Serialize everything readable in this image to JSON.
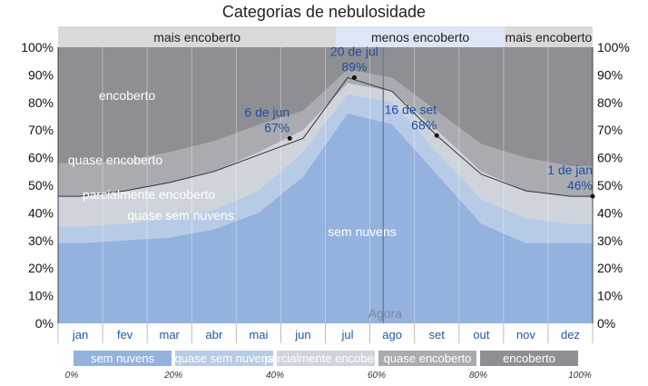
{
  "title": "Categorias de nebulosidade",
  "chart_data": {
    "type": "area",
    "x": [
      "jan",
      "fev",
      "mar",
      "abr",
      "mai",
      "jun",
      "jul",
      "ago",
      "set",
      "out",
      "nov",
      "dez"
    ],
    "ylim": [
      0,
      100
    ],
    "y_left_ticks": [
      "0%",
      "10%",
      "20%",
      "30%",
      "40%",
      "50%",
      "60%",
      "70%",
      "80%",
      "90%",
      "100%"
    ],
    "y_right_ticks": [
      "100%",
      "90%",
      "80%",
      "70%",
      "60%",
      "50%",
      "40%",
      "30%",
      "20%",
      "10%",
      "0%"
    ],
    "months": [
      "jan",
      "fev",
      "mar",
      "abr",
      "mai",
      "jun",
      "jul",
      "ago",
      "set",
      "out",
      "nov",
      "dez"
    ],
    "bands": [
      {
        "label": "mais encoberto",
        "start": 0,
        "end": 0.52,
        "color": "#d9d9d9"
      },
      {
        "label": "menos encoberto",
        "start": 0.52,
        "end": 0.835,
        "color": "#dde6f4"
      },
      {
        "label": "mais encoberto",
        "start": 0.835,
        "end": 1,
        "color": "#d9d9d9"
      }
    ],
    "series": [
      {
        "name": "sem nuvens",
        "color": "#93b2de",
        "values": [
          29,
          30,
          31,
          34,
          40,
          53,
          76,
          72,
          54,
          36,
          29,
          29
        ]
      },
      {
        "name": "quase sem nuvens",
        "color": "#b8cbe6",
        "values": [
          35,
          36,
          38,
          41,
          48,
          62,
          83,
          80,
          62,
          45,
          38,
          36
        ]
      },
      {
        "name": "parcialmente encoberto",
        "color": "#cfd4dc",
        "values": [
          46,
          48,
          51,
          55,
          62,
          70,
          87,
          84,
          70,
          55,
          48,
          46
        ]
      },
      {
        "name": "quase encoberto",
        "color": "#a9abb0",
        "values": [
          58,
          59,
          62,
          66,
          72,
          77,
          92,
          89,
          77,
          65,
          60,
          57
        ]
      },
      {
        "name": "encoberto",
        "color": "#8e8f94",
        "values": [
          100,
          100,
          100,
          100,
          100,
          100,
          100,
          100,
          100,
          100,
          100,
          100
        ]
      }
    ],
    "line": {
      "values": [
        46,
        48,
        51,
        55,
        61,
        67,
        89,
        84,
        68,
        54,
        48,
        46
      ]
    },
    "area_labels": [
      "encoberto",
      "quase encoberto",
      "parcialmente encoberto",
      "quase sem nuvens",
      "sem nuvens"
    ],
    "annotations": [
      {
        "date": "6 de jun",
        "value": "67%",
        "mo": 5.2,
        "y": 67
      },
      {
        "date": "20 de jul",
        "value": "89%",
        "mo": 6.65,
        "y": 89
      },
      {
        "date": "16 de set",
        "value": "68%",
        "mo": 8.5,
        "y": 68
      },
      {
        "date": "1 de jan",
        "value": "46%",
        "mo": 12.0,
        "y": 46
      }
    ],
    "now_label": "Agora",
    "now_mo": 7.3,
    "legend": {
      "items": [
        {
          "label": "sem nuvens",
          "color": "#93b2de"
        },
        {
          "label": "quase sem nuvens",
          "color": "#b8cbe6"
        },
        {
          "label": "parcialmente encoberto",
          "color": "#cfd4dc"
        },
        {
          "label": "quase encoberto",
          "color": "#a9abb0"
        },
        {
          "label": "encoberto",
          "color": "#8e8f94"
        }
      ],
      "pct_labels": [
        "0%",
        "20%",
        "40%",
        "60%",
        "80%",
        "100%"
      ]
    }
  }
}
